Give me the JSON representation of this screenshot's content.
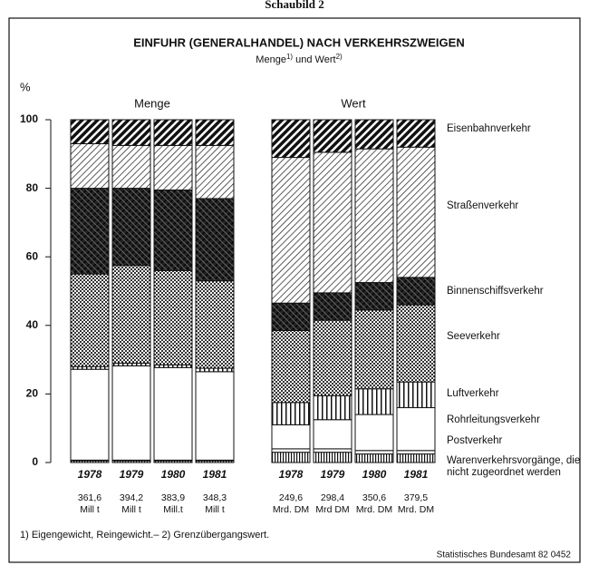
{
  "header": "Schaubild 2",
  "chart_data": {
    "type": "bar",
    "stacked": true,
    "title": "EINFUHR (GENERALHANDEL) NACH VERKEHRSZWEIGEN",
    "subtitle": [
      "Menge",
      "1)",
      " und Wert",
      "2)"
    ],
    "ylabel": "%",
    "ylim": [
      0,
      100
    ],
    "yticks": [
      0,
      20,
      40,
      60,
      80,
      100
    ],
    "panels": [
      {
        "name": "Menge",
        "categories": [
          "1978",
          "1979",
          "1980",
          "1981"
        ],
        "totals": [
          [
            "361,6",
            "Mill t"
          ],
          [
            "394,2",
            "Mill t"
          ],
          [
            "383,9",
            "Mill.t"
          ],
          [
            "348,3",
            "Mill t"
          ]
        ]
      },
      {
        "name": "Wert",
        "categories": [
          "1978",
          "1979",
          "1980",
          "1981"
        ],
        "totals": [
          [
            "249,6",
            "Mrd. DM"
          ],
          [
            "298,4",
            "Mrd DM"
          ],
          [
            "350,6",
            "Mrd. DM"
          ],
          [
            "379,5",
            "Mrd. DM"
          ]
        ]
      }
    ],
    "series": [
      {
        "name": "Warenverkehrsvorgänge, die nicht zugeordnet werden",
        "pattern": "vstripe-fine",
        "values": [
          0.5,
          0.5,
          0.5,
          0.5,
          3.0,
          3.0,
          2.5,
          2.5
        ]
      },
      {
        "name": "Postverkehr",
        "pattern": "white",
        "values": [
          0.2,
          0.2,
          0.2,
          0.2,
          1.0,
          1.0,
          1.0,
          1.0
        ]
      },
      {
        "name": "Rohrleitungsverkehr",
        "pattern": "white",
        "values": [
          26.5,
          27.5,
          27.0,
          25.8,
          7.0,
          8.5,
          10.5,
          12.5
        ]
      },
      {
        "name": "Luftverkehr",
        "pattern": "vstripe",
        "values": [
          0.8,
          0.8,
          0.8,
          1.0,
          6.5,
          7.0,
          7.5,
          7.5
        ]
      },
      {
        "name": "Seeverkehr",
        "pattern": "dots",
        "values": [
          27.0,
          28.5,
          27.5,
          25.5,
          21.0,
          22.0,
          23.0,
          22.5
        ]
      },
      {
        "name": "Binnenschiffsverkehr",
        "pattern": "cross",
        "values": [
          25.0,
          22.5,
          23.5,
          24.0,
          8.0,
          8.0,
          8.0,
          8.0
        ]
      },
      {
        "name": "Straßenverkehr",
        "pattern": "light-hatch",
        "values": [
          13.0,
          12.5,
          13.0,
          15.5,
          42.5,
          41.0,
          39.0,
          38.0
        ]
      },
      {
        "name": "Eisenbahnverkehr",
        "pattern": "dark-hatch",
        "values": [
          7.0,
          7.5,
          7.5,
          7.5,
          11.0,
          9.5,
          8.5,
          8.0
        ]
      }
    ],
    "footnote": "1) Eigengewicht, Reingewicht.– 2) Grenzübergangswert.",
    "source": "Statistisches Bundesamt 82 0452"
  }
}
